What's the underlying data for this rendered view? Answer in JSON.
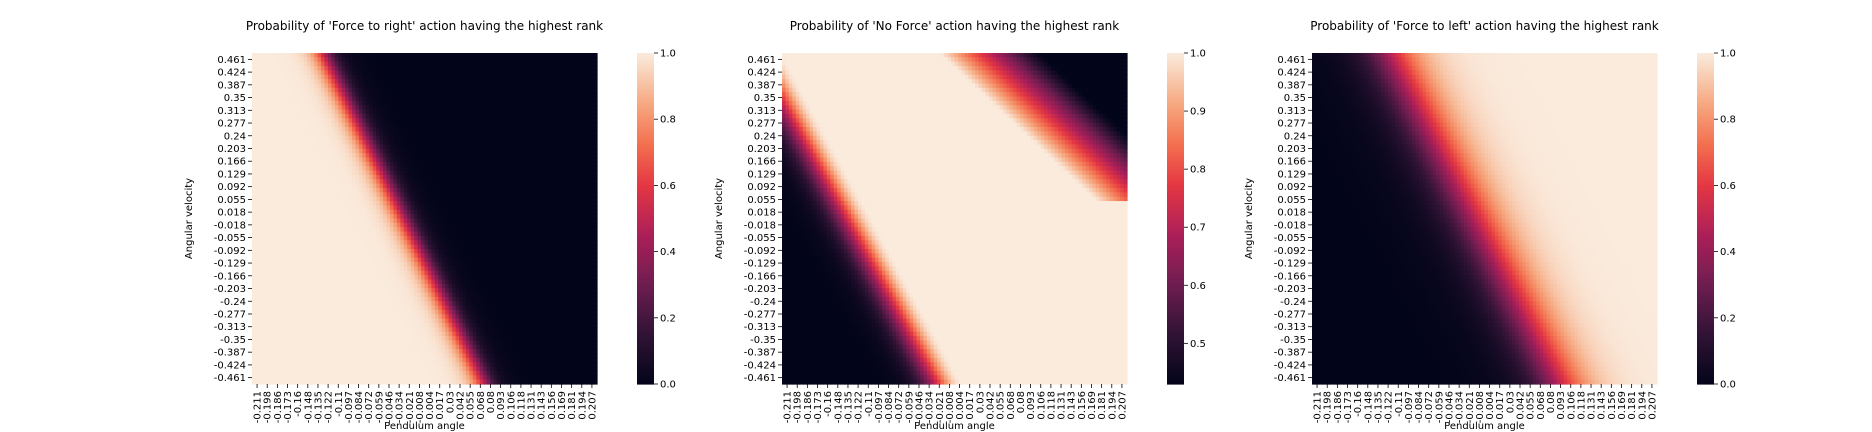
{
  "chart_data": [
    {
      "type": "heatmap",
      "title": "Probability of 'Force to right' action having the highest rank",
      "xlabel": "Pendulum angle",
      "ylabel": "Angular velocity",
      "x_tick_labels": [
        "-0.211",
        "-0.198",
        "-0.186",
        "-0.173",
        "-0.16",
        "-0.148",
        "-0.135",
        "-0.122",
        "-0.11",
        "-0.097",
        "-0.084",
        "-0.072",
        "-0.059",
        "-0.046",
        "-0.034",
        "-0.021",
        "-0.008",
        "0.004",
        "0.017",
        "0.03",
        "0.042",
        "0.055",
        "0.068",
        "0.08",
        "0.093",
        "0.106",
        "0.118",
        "0.131",
        "0.143",
        "0.156",
        "0.169",
        "0.181",
        "0.194",
        "0.207"
      ],
      "y_tick_labels": [
        "0.461",
        "0.424",
        "0.387",
        "0.35",
        "0.313",
        "0.277",
        "0.24",
        "0.203",
        "0.166",
        "0.129",
        "0.092",
        "0.055",
        "0.018",
        "-0.018",
        "-0.055",
        "-0.092",
        "-0.129",
        "-0.166",
        "-0.203",
        "-0.24",
        "-0.277",
        "-0.313",
        "-0.35",
        "-0.387",
        "-0.424",
        "-0.461"
      ],
      "colorbar": {
        "min": 0.0,
        "max": 1.0,
        "ticks": [
          "0.0",
          "0.2",
          "0.4",
          "0.6",
          "0.8",
          "1.0"
        ]
      },
      "transition": {
        "angle_at_top": -0.125,
        "angle_at_bottom": 0.07,
        "width_angle": 0.035
      }
    },
    {
      "type": "heatmap",
      "title": "Probability of 'No Force' action having the highest rank",
      "xlabel": "Pendulum angle",
      "ylabel": "Angular velocity",
      "x_tick_labels": [
        "-0.211",
        "-0.198",
        "-0.186",
        "-0.173",
        "-0.16",
        "-0.148",
        "-0.135",
        "-0.122",
        "-0.11",
        "-0.097",
        "-0.084",
        "-0.072",
        "-0.059",
        "-0.046",
        "-0.034",
        "-0.021",
        "-0.008",
        "0.004",
        "0.017",
        "0.03",
        "0.042",
        "0.055",
        "0.068",
        "0.08",
        "0.093",
        "0.106",
        "0.118",
        "0.131",
        "0.143",
        "0.156",
        "0.169",
        "0.181",
        "0.194",
        "0.207"
      ],
      "y_tick_labels": [
        "0.461",
        "0.424",
        "0.387",
        "0.35",
        "0.313",
        "0.277",
        "0.24",
        "0.203",
        "0.166",
        "0.129",
        "0.092",
        "0.055",
        "0.018",
        "-0.018",
        "-0.055",
        "-0.092",
        "-0.129",
        "-0.166",
        "-0.203",
        "-0.24",
        "-0.277",
        "-0.313",
        "-0.35",
        "-0.387",
        "-0.424",
        "-0.461"
      ],
      "colorbar": {
        "min": 0.43,
        "max": 1.0,
        "ticks": [
          "0.5",
          "0.6",
          "0.7",
          "0.8",
          "0.9",
          "1.0"
        ]
      }
    },
    {
      "type": "heatmap",
      "title": "Probability of 'Force to left' action having the highest rank",
      "xlabel": "Pendulum angle",
      "ylabel": "Angular velocity",
      "x_tick_labels": [
        "-0.211",
        "-0.198",
        "-0.186",
        "-0.173",
        "-0.16",
        "-0.148",
        "-0.135",
        "-0.122",
        "-0.11",
        "-0.097",
        "-0.084",
        "-0.072",
        "-0.059",
        "-0.046",
        "-0.034",
        "-0.021",
        "-0.008",
        "0.004",
        "0.017",
        "0.03",
        "0.042",
        "0.055",
        "0.068",
        "0.08",
        "0.093",
        "0.106",
        "0.118",
        "0.131",
        "0.143",
        "0.156",
        "0.169",
        "0.181",
        "0.194",
        "0.207"
      ],
      "y_tick_labels": [
        "0.461",
        "0.424",
        "0.387",
        "0.35",
        "0.313",
        "0.277",
        "0.24",
        "0.203",
        "0.166",
        "0.129",
        "0.092",
        "0.055",
        "0.018",
        "-0.018",
        "-0.055",
        "-0.092",
        "-0.129",
        "-0.166",
        "-0.203",
        "-0.24",
        "-0.277",
        "-0.313",
        "-0.35",
        "-0.387",
        "-0.424",
        "-0.461"
      ],
      "colorbar": {
        "min": 0.0,
        "max": 1.0,
        "ticks": [
          "0.0",
          "0.2",
          "0.4",
          "0.6",
          "0.8",
          "1.0"
        ]
      }
    }
  ]
}
